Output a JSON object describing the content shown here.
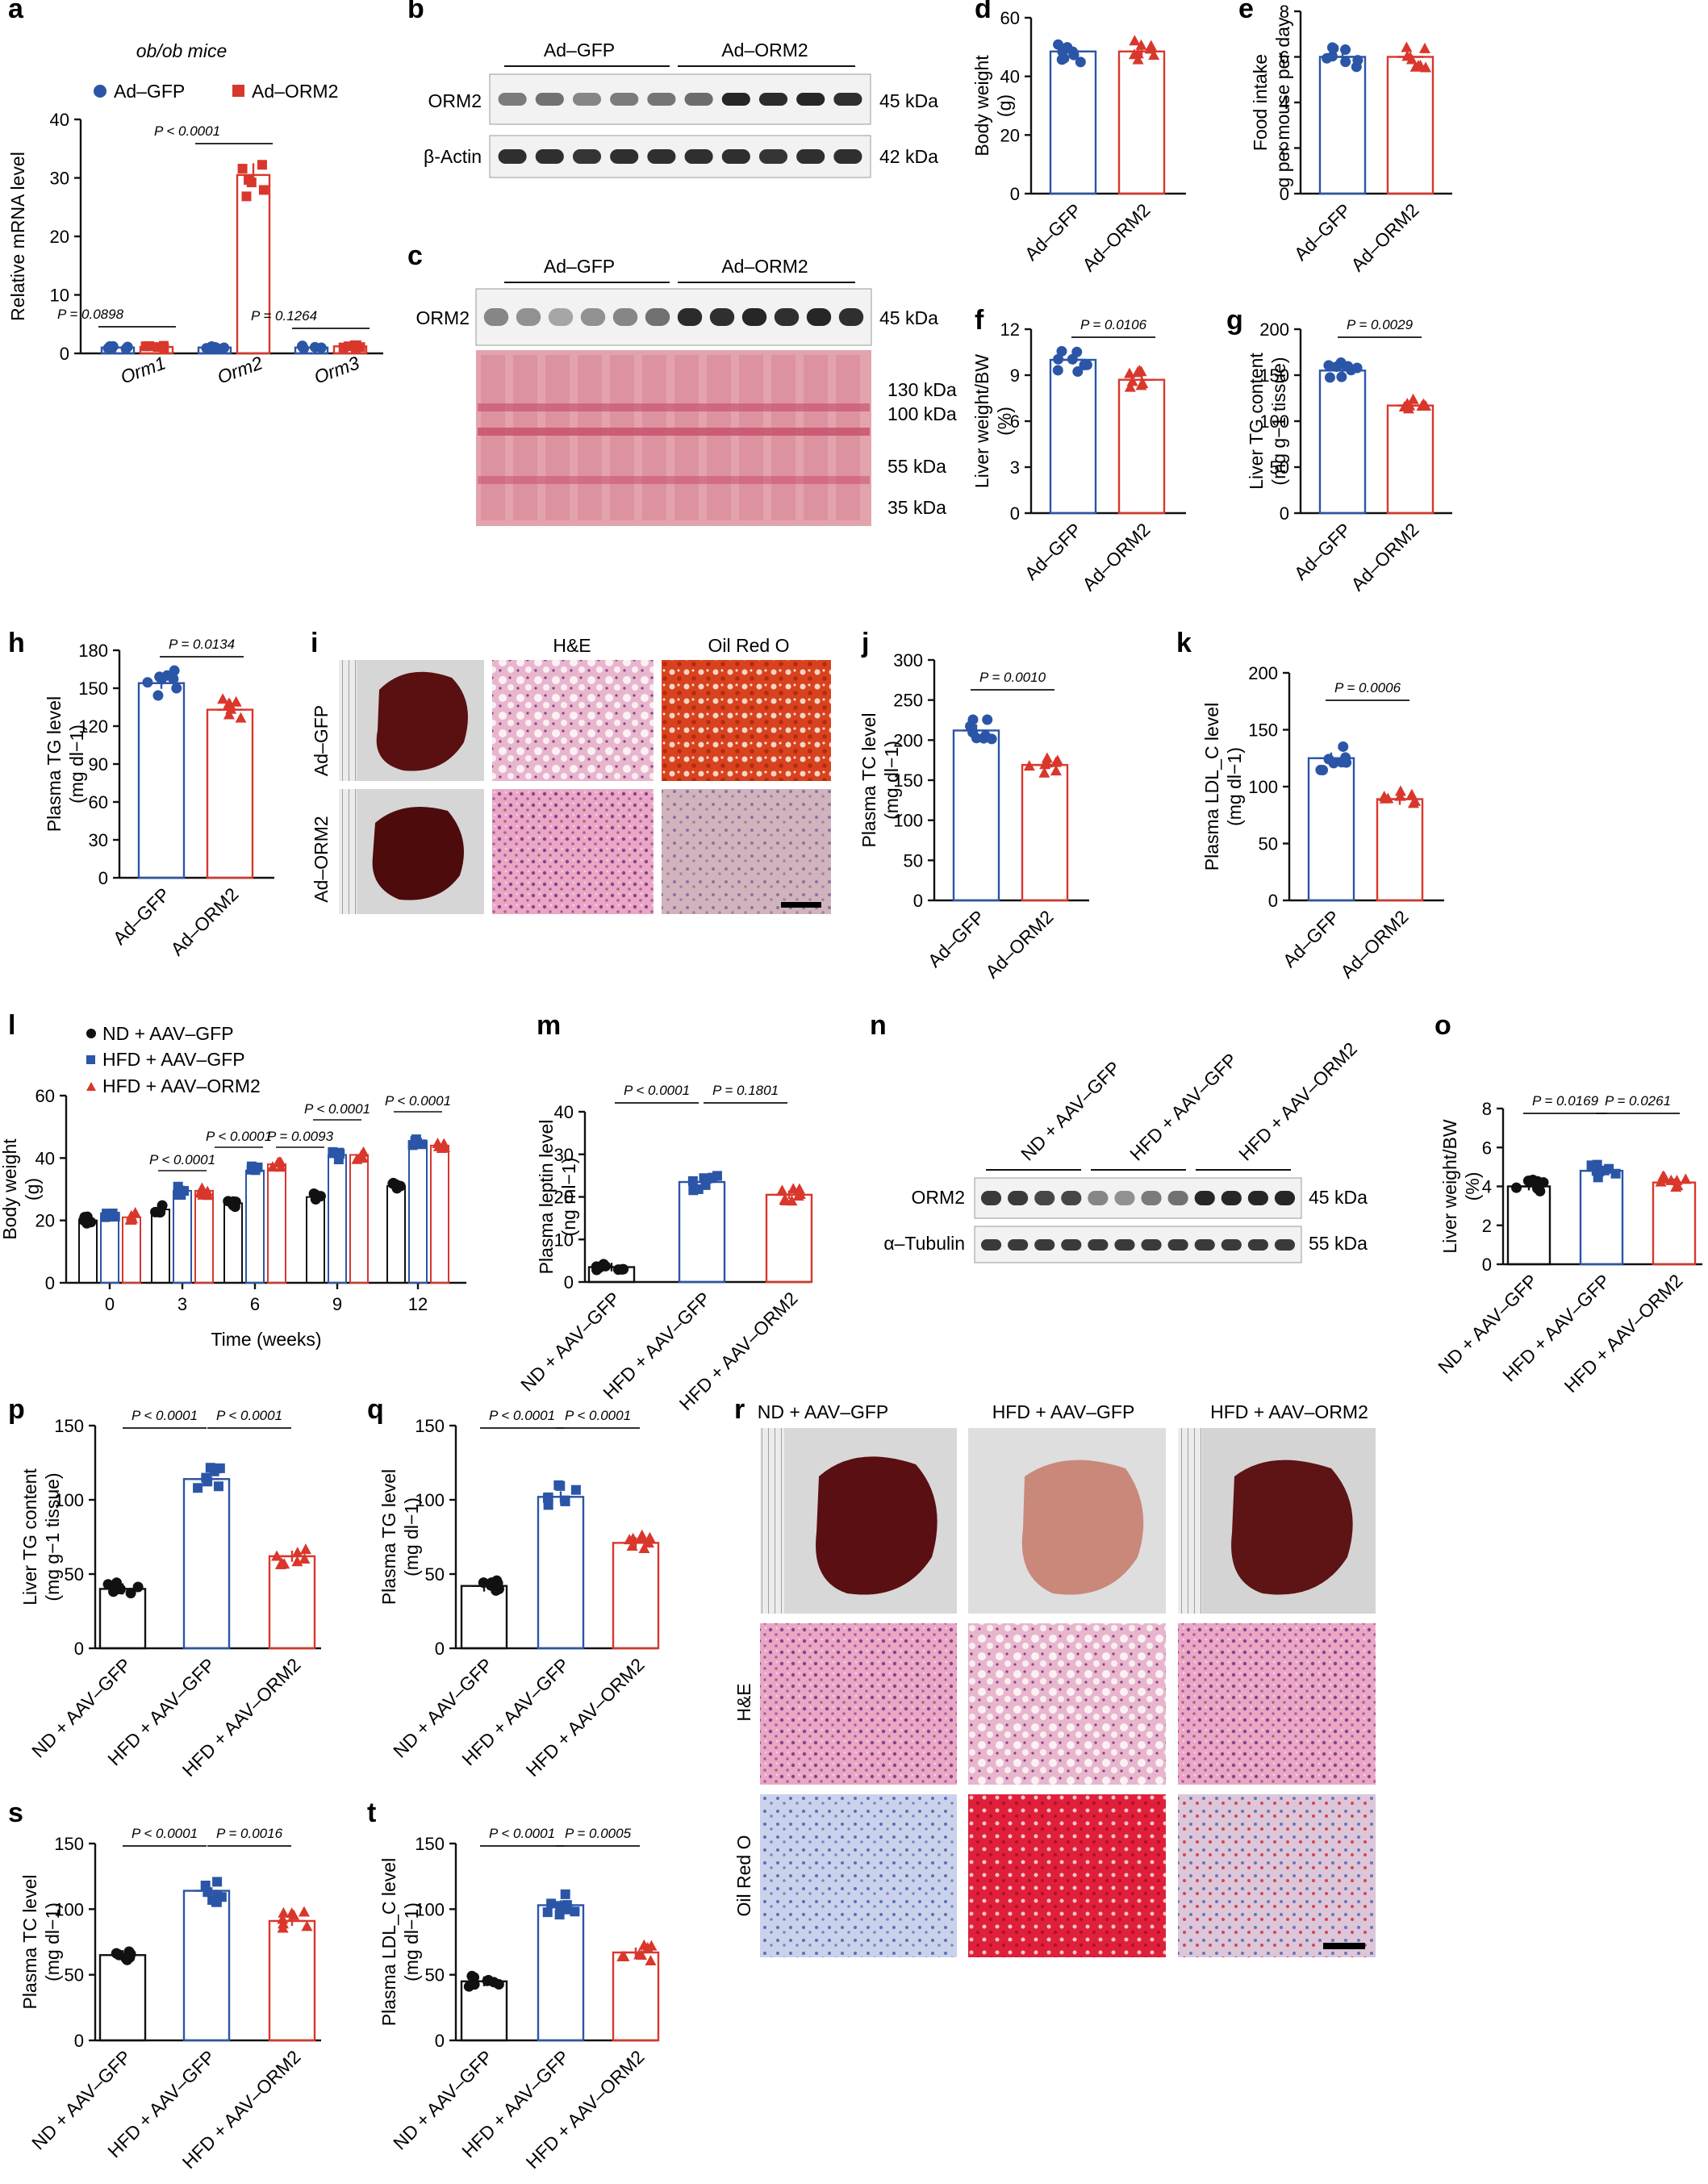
{
  "colors": {
    "gfp": "#2b55a6",
    "orm2": "#d9372c",
    "nd": "#111111",
    "blot_bg": "#f2f2f2",
    "ponceau": "#e3a3ad"
  },
  "panel_letters": [
    "a",
    "b",
    "c",
    "d",
    "e",
    "f",
    "g",
    "h",
    "i",
    "j",
    "k",
    "l",
    "m",
    "n",
    "o",
    "p",
    "q",
    "r",
    "s",
    "t"
  ],
  "panel_b": {
    "groups": [
      "Ad–GFP",
      "Ad–ORM2"
    ],
    "rows": [
      {
        "label": "ORM2",
        "size": "45 kDa"
      },
      {
        "label": "β-Actin",
        "size": "42 kDa"
      }
    ]
  },
  "panel_c": {
    "groups": [
      "Ad–GFP",
      "Ad–ORM2"
    ],
    "row_label": "ORM2",
    "row_size": "45 kDa",
    "markers": [
      "130 kDa",
      "100 kDa",
      "55 kDa",
      "35 kDa"
    ]
  },
  "panel_i": {
    "columns": [
      "H&E",
      "Oil Red O"
    ],
    "rows": [
      "Ad–GFP",
      "Ad–ORM2"
    ]
  },
  "panel_n": {
    "groups": [
      "ND + AAV–GFP",
      "HFD + AAV–GFP",
      "HFD + AAV–ORM2"
    ],
    "rows": [
      {
        "label": "ORM2",
        "size": "45 kDa"
      },
      {
        "label": "α–Tubulin",
        "size": "55 kDa"
      }
    ]
  },
  "panel_r": {
    "columns": [
      "ND + AAV–GFP",
      "HFD + AAV–GFP",
      "HFD + AAV–ORM2"
    ],
    "rows": [
      "H&E",
      "Oil Red O"
    ]
  },
  "chart_data": [
    {
      "id": "a",
      "type": "bar",
      "title": "ob/ob mice",
      "ylabel": "Relative mRNA level",
      "ylim": [
        0,
        40
      ],
      "yticks": [
        0,
        10,
        20,
        30,
        40
      ],
      "categories": [
        "Orm1",
        "Orm2",
        "Orm3"
      ],
      "legend": [
        "Ad–GFP",
        "Ad–ORM2"
      ],
      "series": [
        {
          "name": "Ad–GFP",
          "values": [
            1,
            1,
            1
          ]
        },
        {
          "name": "Ad–ORM2",
          "values": [
            1.1,
            30.5,
            1.2
          ]
        }
      ],
      "pvalues": [
        "P = 0.0898",
        "P < 0.0001",
        "P = 0.1264"
      ]
    },
    {
      "id": "d",
      "type": "bar",
      "ylabel": "Body weight (g)",
      "ylim": [
        0,
        60
      ],
      "yticks": [
        0,
        20,
        40,
        60
      ],
      "categories": [
        "Ad–GFP",
        "Ad–ORM2"
      ],
      "values": [
        48.5,
        48.5
      ]
    },
    {
      "id": "e",
      "type": "bar",
      "ylabel": "Food intake g per mouse per day",
      "ylim": [
        0,
        8
      ],
      "yticks": [
        0,
        2,
        4,
        6,
        8
      ],
      "categories": [
        "Ad–GFP",
        "Ad–ORM2"
      ],
      "values": [
        6.0,
        6.0
      ]
    },
    {
      "id": "f",
      "type": "bar",
      "ylabel": "Liver weight/BW (%)",
      "ylim": [
        0,
        12
      ],
      "yticks": [
        0,
        3,
        6,
        9,
        12
      ],
      "categories": [
        "Ad–GFP",
        "Ad–ORM2"
      ],
      "values": [
        10.0,
        8.7
      ],
      "pvalues": [
        "P = 0.0106"
      ]
    },
    {
      "id": "g",
      "type": "bar",
      "ylabel": "Liver TG content (mg g−1 tissue)",
      "ylim": [
        0,
        200
      ],
      "yticks": [
        0,
        50,
        100,
        150,
        200
      ],
      "categories": [
        "Ad–GFP",
        "Ad–ORM2"
      ],
      "values": [
        155,
        117
      ],
      "pvalues": [
        "P = 0.0029"
      ]
    },
    {
      "id": "h",
      "type": "bar",
      "ylabel": "Plasma TG level (mg dl−1)",
      "ylim": [
        0,
        180
      ],
      "yticks": [
        0,
        30,
        60,
        90,
        120,
        150,
        180
      ],
      "categories": [
        "Ad–GFP",
        "Ad–ORM2"
      ],
      "values": [
        154,
        133
      ],
      "pvalues": [
        "P = 0.0134"
      ]
    },
    {
      "id": "j",
      "type": "bar",
      "ylabel": "Plasma TC level (mg dl−1)",
      "ylim": [
        0,
        300
      ],
      "yticks": [
        0,
        50,
        100,
        150,
        200,
        250,
        300
      ],
      "categories": [
        "Ad–GFP",
        "Ad–ORM2"
      ],
      "values": [
        212,
        169
      ],
      "pvalues": [
        "P = 0.0010"
      ]
    },
    {
      "id": "k",
      "type": "bar",
      "ylabel": "Plasma LDL_C level (mg dl−1)",
      "ylim": [
        0,
        200
      ],
      "yticks": [
        0,
        50,
        100,
        150,
        200
      ],
      "categories": [
        "Ad–GFP",
        "Ad–ORM2"
      ],
      "values": [
        125,
        89
      ],
      "pvalues": [
        "P = 0.0006"
      ]
    },
    {
      "id": "l",
      "type": "bar",
      "xlabel": "Time (weeks)",
      "ylabel": "Body weight (g)",
      "ylim": [
        0,
        60
      ],
      "yticks": [
        0,
        20,
        40,
        60
      ],
      "categories": [
        "0",
        "3",
        "6",
        "9",
        "12"
      ],
      "legend": [
        "ND + AAV–GFP",
        "HFD + AAV–GFP",
        "HFD + AAV–ORM2"
      ],
      "series": [
        {
          "name": "ND + AAV–GFP",
          "values": [
            20,
            23.5,
            25.5,
            27.5,
            31
          ]
        },
        {
          "name": "HFD + AAV–GFP",
          "values": [
            21,
            29.5,
            36,
            41,
            45.5
          ]
        },
        {
          "name": "HFD + AAV–ORM2",
          "values": [
            21,
            29.5,
            38,
            41,
            44
          ]
        }
      ],
      "pvalues": [
        "P < 0.0001",
        "P < 0.0001",
        "P = 0.0093",
        "P < 0.0001",
        "P < 0.0001"
      ]
    },
    {
      "id": "m",
      "type": "bar",
      "ylabel": "Plasma leptin level (ng ml−1)",
      "ylim": [
        0,
        40
      ],
      "yticks": [
        0,
        10,
        20,
        30,
        40
      ],
      "categories": [
        "ND + AAV–GFP",
        "HFD + AAV–GFP",
        "HFD + AAV–ORM2"
      ],
      "values": [
        3.5,
        23.5,
        20.5
      ],
      "pvalues": [
        "P < 0.0001",
        "P = 0.1801"
      ]
    },
    {
      "id": "o",
      "type": "bar",
      "ylabel": "Liver weight/BW (%)",
      "ylim": [
        0,
        8
      ],
      "yticks": [
        0,
        2,
        4,
        6,
        8
      ],
      "categories": [
        "ND + AAV–GFP",
        "HFD + AAV–GFP",
        "HFD + AAV–ORM2"
      ],
      "values": [
        4.0,
        4.8,
        4.2
      ],
      "pvalues": [
        "P = 0.0169",
        "P = 0.0261"
      ]
    },
    {
      "id": "p",
      "type": "bar",
      "ylabel": "Liver TG content (mg g−1 tissue)",
      "ylim": [
        0,
        150
      ],
      "yticks": [
        0,
        50,
        100,
        150
      ],
      "categories": [
        "ND + AAV–GFP",
        "HFD + AAV–GFP",
        "HFD + AAV–ORM2"
      ],
      "values": [
        40,
        114,
        62
      ],
      "pvalues": [
        "P < 0.0001",
        "P < 0.0001"
      ]
    },
    {
      "id": "q",
      "type": "bar",
      "ylabel": "Plasma TG level (mg dl−1)",
      "ylim": [
        0,
        150
      ],
      "yticks": [
        0,
        50,
        100,
        150
      ],
      "categories": [
        "ND + AAV–GFP",
        "HFD + AAV–GFP",
        "HFD + AAV–ORM2"
      ],
      "values": [
        42,
        102,
        71
      ],
      "pvalues": [
        "P < 0.0001",
        "P < 0.0001"
      ]
    },
    {
      "id": "s",
      "type": "bar",
      "ylabel": "Plasma TC level (mg dl−1)",
      "ylim": [
        0,
        150
      ],
      "yticks": [
        0,
        50,
        100,
        150
      ],
      "categories": [
        "ND + AAV–GFP",
        "HFD + AAV–GFP",
        "HFD + AAV–ORM2"
      ],
      "values": [
        65,
        114,
        91
      ],
      "pvalues": [
        "P < 0.0001",
        "P = 0.0016"
      ]
    },
    {
      "id": "t",
      "type": "bar",
      "ylabel": "Plasma LDL_C level (mg dl−1)",
      "ylim": [
        0,
        150
      ],
      "yticks": [
        0,
        50,
        100,
        150
      ],
      "categories": [
        "ND + AAV–GFP",
        "HFD + AAV–GFP",
        "HFD + AAV–ORM2"
      ],
      "values": [
        45,
        103,
        67
      ],
      "pvalues": [
        "P < 0.0001",
        "P = 0.0005"
      ]
    }
  ]
}
